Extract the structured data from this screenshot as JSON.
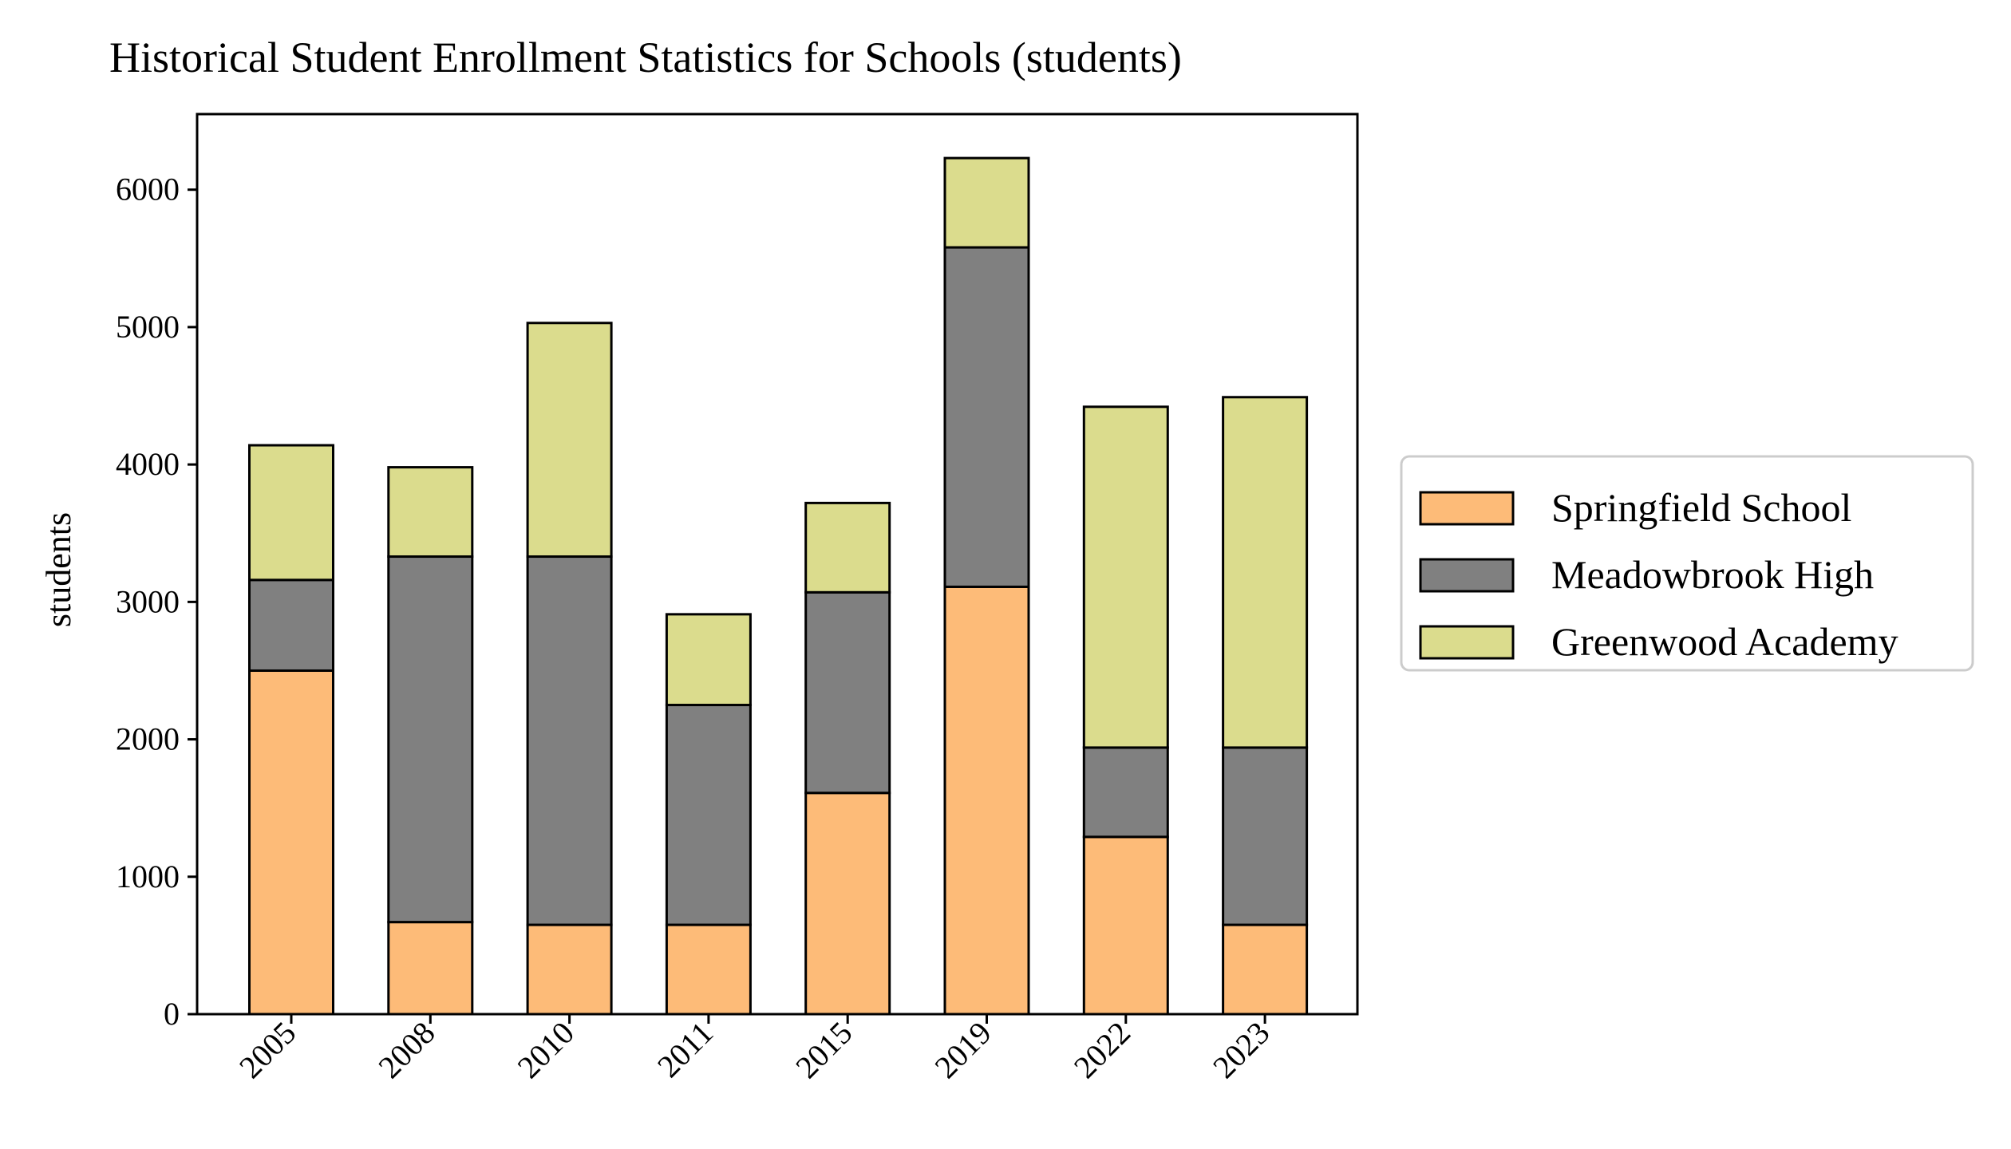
{
  "chart_data": {
    "type": "bar",
    "stacked": true,
    "title": "Historical Student Enrollment Statistics for Schools (students)",
    "xlabel": "",
    "ylabel": "students",
    "categories": [
      "2005",
      "2008",
      "2010",
      "2011",
      "2015",
      "2019",
      "2022",
      "2023"
    ],
    "ylim": [
      0,
      6550
    ],
    "yticks": [
      0,
      1000,
      2000,
      3000,
      4000,
      5000,
      6000
    ],
    "grid": false,
    "legend_position": "right",
    "series": [
      {
        "name": "Springfield School",
        "color": "#fdbb78",
        "values": [
          2500,
          670,
          650,
          650,
          1610,
          3110,
          1290,
          650
        ]
      },
      {
        "name": "Meadowbrook High",
        "color": "#808080",
        "values": [
          660,
          2660,
          2680,
          1600,
          1460,
          2470,
          650,
          1290
        ]
      },
      {
        "name": "Greenwood Academy",
        "color": "#dbdc8d",
        "values": [
          980,
          650,
          1700,
          660,
          650,
          650,
          2480,
          2550
        ]
      }
    ]
  }
}
